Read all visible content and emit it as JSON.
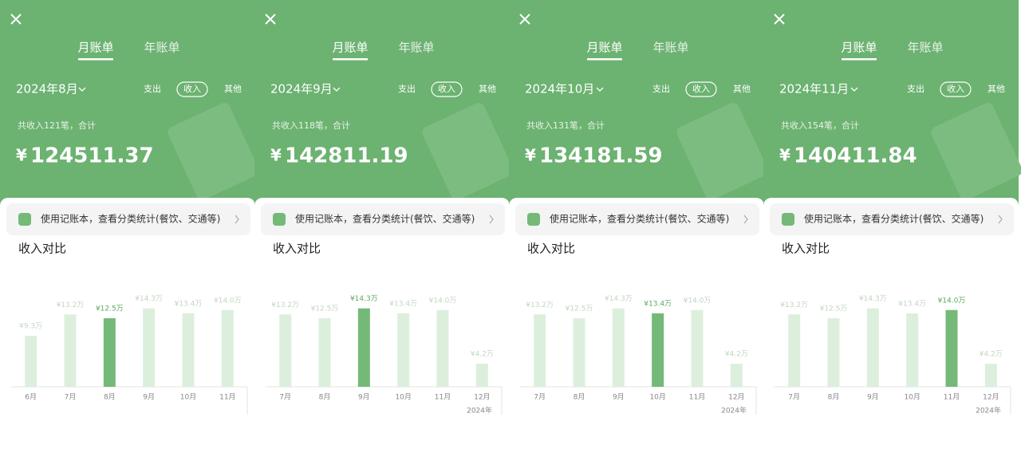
{
  "panels": [
    {
      "tabs": [
        "月账单",
        "年账单"
      ],
      "month": "2024年8月",
      "filters": [
        "支出",
        "收入",
        "其他"
      ],
      "summary": "共收入121笔，合计",
      "currency": "¥",
      "total": "124511.37",
      "banner": "使用记账本，查看分类统计(餐饮、交通等)"
    },
    {
      "tabs": [
        "月账单",
        "年账单"
      ],
      "month": "2024年9月",
      "filters": [
        "支出",
        "收入",
        "其他"
      ],
      "summary": "共收入118笔，合计",
      "currency": "¥",
      "total": "142811.19",
      "banner": "使用记账本，查看分类统计(餐饮、交通等)"
    },
    {
      "tabs": [
        "月账单",
        "年账单"
      ],
      "month": "2024年10月",
      "filters": [
        "支出",
        "收入",
        "其他"
      ],
      "summary": "共收入131笔，合计",
      "currency": "¥",
      "total": "134181.59",
      "banner": "使用记账本，查看分类统计(餐饮、交通等)"
    },
    {
      "tabs": [
        "月账单",
        "年账单"
      ],
      "month": "2024年11月",
      "filters": [
        "支出",
        "收入",
        "其他"
      ],
      "summary": "共收入154笔，合计",
      "currency": "¥",
      "total": "140411.84",
      "banner": "使用记账本，查看分类统计(餐饮、交通等)"
    }
  ],
  "chart_data": [
    {
      "type": "bar",
      "title": "收入对比",
      "categories": [
        "6月",
        "7月",
        "8月",
        "9月",
        "10月",
        "11月"
      ],
      "values": [
        9.3,
        13.2,
        12.5,
        14.3,
        13.4,
        14.0
      ],
      "value_labels": [
        "¥9.3万",
        "¥13.2万",
        "¥12.5万",
        "¥14.3万",
        "¥13.4万",
        "¥14.0万"
      ],
      "colors": [
        "#dcefdc",
        "#dcefdc",
        "#74b978",
        "#dcefdc",
        "#dcefdc",
        "#dcefdc"
      ],
      "label_colors": [
        "#c2d6c2",
        "#c2d6c2",
        "#5ea862",
        "#c2d6c2",
        "#c2d6c2",
        "#c2d6c2"
      ],
      "ylim": [
        0,
        16
      ]
    },
    {
      "type": "bar",
      "title": "收入对比",
      "categories": [
        "7月",
        "8月",
        "9月",
        "10月",
        "11月",
        "12月"
      ],
      "values": [
        13.2,
        12.5,
        14.3,
        13.4,
        14.0,
        4.2
      ],
      "value_labels": [
        "¥13.2万",
        "¥12.5万",
        "¥14.3万",
        "¥13.4万",
        "¥14.0万",
        "¥4.2万"
      ],
      "colors": [
        "#dcefdc",
        "#dcefdc",
        "#74b978",
        "#dcefdc",
        "#dcefdc",
        "#dcefdc"
      ],
      "label_colors": [
        "#c2d6c2",
        "#c2d6c2",
        "#5ea862",
        "#c2d6c2",
        "#c2d6c2",
        "#c2d6c2"
      ],
      "ylim": [
        0,
        16
      ],
      "year_label": "2024年"
    },
    {
      "type": "bar",
      "title": "收入对比",
      "categories": [
        "7月",
        "8月",
        "9月",
        "10月",
        "11月",
        "12月"
      ],
      "values": [
        13.2,
        12.5,
        14.3,
        13.4,
        14.0,
        4.2
      ],
      "value_labels": [
        "¥13.2万",
        "¥12.5万",
        "¥14.3万",
        "¥13.4万",
        "¥14.0万",
        "¥4.2万"
      ],
      "colors": [
        "#dcefdc",
        "#dcefdc",
        "#dcefdc",
        "#74b978",
        "#dcefdc",
        "#dcefdc"
      ],
      "label_colors": [
        "#c2d6c2",
        "#c2d6c2",
        "#c2d6c2",
        "#5ea862",
        "#c2d6c2",
        "#c2d6c2"
      ],
      "ylim": [
        0,
        16
      ],
      "year_label": "2024年"
    },
    {
      "type": "bar",
      "title": "收入对比",
      "categories": [
        "7月",
        "8月",
        "9月",
        "10月",
        "11月",
        "12月"
      ],
      "values": [
        13.2,
        12.5,
        14.3,
        13.4,
        14.0,
        4.2
      ],
      "value_labels": [
        "¥13.2万",
        "¥12.5万",
        "¥14.3万",
        "¥13.4万",
        "¥14.0万",
        "¥4.2万"
      ],
      "colors": [
        "#dcefdc",
        "#dcefdc",
        "#dcefdc",
        "#dcefdc",
        "#74b978",
        "#dcefdc"
      ],
      "label_colors": [
        "#c2d6c2",
        "#c2d6c2",
        "#c2d6c2",
        "#c2d6c2",
        "#5ea862",
        "#c2d6c2"
      ],
      "ylim": [
        0,
        16
      ],
      "year_label": "2024年"
    }
  ]
}
